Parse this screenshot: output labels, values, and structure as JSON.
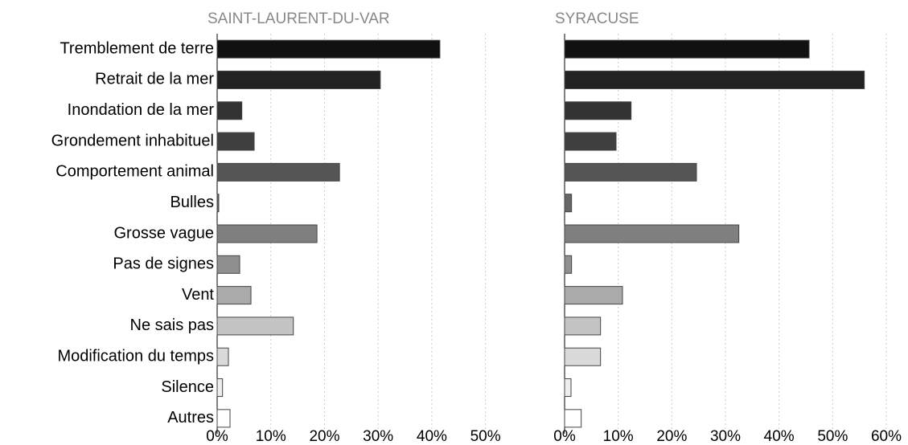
{
  "chart_data": [
    {
      "type": "bar",
      "orientation": "horizontal",
      "title": "SAINT-LAURENT-DU-VAR",
      "categories": [
        "Tremblement de terre",
        "Retrait de la mer",
        "Inondation de la mer",
        "Grondement inhabituel",
        "Comportement animal",
        "Bulles",
        "Grosse vague",
        "Pas de signes",
        "Vent",
        "Ne sais pas",
        "Modification du temps",
        "Silence",
        "Autres"
      ],
      "values": [
        41.5,
        30.4,
        4.6,
        6.9,
        22.8,
        0.3,
        18.6,
        4.2,
        6.3,
        14.2,
        2.1,
        1.0,
        2.4
      ],
      "colors": [
        "#111111",
        "#222222",
        "#333333",
        "#3f3f3f",
        "#555555",
        "#666666",
        "#7f7f7f",
        "#8f8f8f",
        "#aaaaaa",
        "#c4c4c4",
        "#dadada",
        "#eeeeee",
        "#ffffff"
      ],
      "xlim": [
        0,
        55
      ],
      "xticks": [
        {
          "value": 0,
          "label": "0%"
        },
        {
          "value": 10,
          "label": "10%"
        },
        {
          "value": 20,
          "label": "20%"
        },
        {
          "value": 30,
          "label": "30%"
        },
        {
          "value": 40,
          "label": "40%"
        },
        {
          "value": 50,
          "label": "50%"
        }
      ],
      "grid": true
    },
    {
      "type": "bar",
      "orientation": "horizontal",
      "title": "SYRACUSE",
      "values": [
        45.6,
        55.9,
        12.4,
        9.6,
        24.6,
        1.3,
        32.5,
        1.3,
        10.8,
        6.7,
        6.7,
        1.2,
        3.1
      ],
      "colors": [
        "#111111",
        "#222222",
        "#333333",
        "#3f3f3f",
        "#555555",
        "#666666",
        "#7f7f7f",
        "#8f8f8f",
        "#aaaaaa",
        "#c4c4c4",
        "#dadada",
        "#eeeeee",
        "#ffffff"
      ],
      "xlim": [
        0,
        60
      ],
      "xticks": [
        {
          "value": 0,
          "label": "0%"
        },
        {
          "value": 10,
          "label": "10%"
        },
        {
          "value": 20,
          "label": "20%"
        },
        {
          "value": 30,
          "label": "30%"
        },
        {
          "value": 40,
          "label": "40%"
        },
        {
          "value": 50,
          "label": "50%"
        },
        {
          "value": 60,
          "label": "60%"
        }
      ],
      "grid": true
    }
  ]
}
